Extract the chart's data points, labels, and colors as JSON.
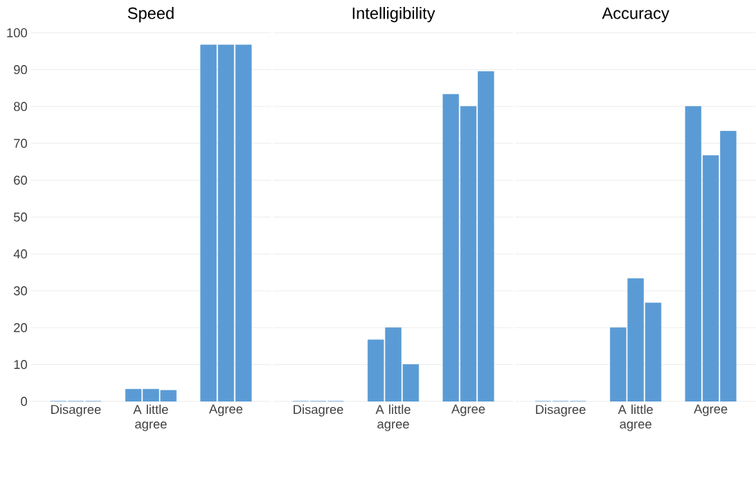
{
  "chart_data": [
    {
      "type": "bar",
      "title": "Speed",
      "categories": [
        "Disagree",
        "A little agree",
        "Agree"
      ],
      "series": [
        {
          "color": "#5b9bd5",
          "values": [
            0,
            3.3,
            96.7
          ]
        },
        {
          "color": "#5b9bd5",
          "values": [
            0,
            3.3,
            96.7
          ]
        },
        {
          "color": "#5b9bd5",
          "values": [
            0,
            3,
            96.7
          ]
        }
      ],
      "ylim": [
        0,
        100
      ],
      "yticks": [
        0,
        10,
        20,
        30,
        40,
        50,
        60,
        70,
        80,
        90,
        100
      ],
      "grid": "y"
    },
    {
      "type": "bar",
      "title": "Intelligibility",
      "categories": [
        "Disagree",
        "A little agree",
        "Agree"
      ],
      "series": [
        {
          "color": "#5b9bd5",
          "values": [
            0,
            16.7,
            83.3
          ]
        },
        {
          "color": "#5b9bd5",
          "values": [
            0,
            20,
            80
          ]
        },
        {
          "color": "#5b9bd5",
          "values": [
            0,
            10,
            89.5
          ]
        }
      ],
      "ylim": [
        0,
        100
      ],
      "yticks": [
        0,
        10,
        20,
        30,
        40,
        50,
        60,
        70,
        80,
        90,
        100
      ],
      "grid": "y",
      "tick_labels": "x"
    },
    {
      "type": "bar",
      "title": "Accuracy",
      "categories": [
        "Disagree",
        "A little agree",
        "Agree"
      ],
      "series": [
        {
          "color": "#5b9bd5",
          "values": [
            0,
            20,
            80
          ]
        },
        {
          "color": "#5b9bd5",
          "values": [
            0,
            33.3,
            66.7
          ]
        },
        {
          "color": "#5b9bd5",
          "values": [
            0,
            26.7,
            73.3
          ]
        }
      ],
      "ylim": [
        0,
        100
      ],
      "yticks": [
        0,
        10,
        20,
        30,
        40,
        50,
        60,
        70,
        80,
        90,
        100
      ],
      "grid": "y",
      "tick_labels": "x"
    }
  ]
}
